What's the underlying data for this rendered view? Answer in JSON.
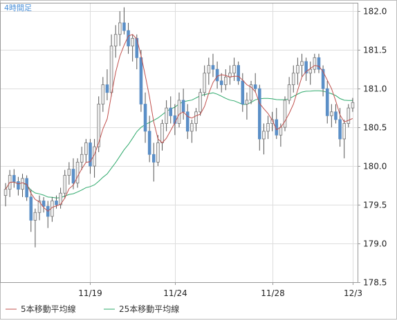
{
  "chart_data": {
    "type": "candlestick",
    "title": "4時間足",
    "ylim": [
      178.5,
      182.1
    ],
    "y_ticks": [
      "182.0",
      "181.5",
      "181.0",
      "180.5",
      "180.0",
      "179.5",
      "179.0",
      "178.5"
    ],
    "y_tick_values": [
      182.0,
      181.5,
      181.0,
      180.5,
      180.0,
      179.5,
      179.0,
      178.5
    ],
    "x_ticks": [
      {
        "label": "11/19",
        "index": 20
      },
      {
        "label": "11/24",
        "index": 40
      },
      {
        "label": "11/28",
        "index": 63
      },
      {
        "label": "12/3",
        "index": 82
      }
    ],
    "grid": true,
    "colors": {
      "up": "#f0f0f0",
      "down": "#5b8fc7",
      "wick": "#555555",
      "ma5": "#c0504d",
      "ma25": "#2ca86a",
      "title": "#4a90d9",
      "grid": "#dddddd",
      "axis": "#999999"
    },
    "candles": [
      [
        179.62,
        179.78,
        179.48,
        179.7
      ],
      [
        179.7,
        179.95,
        179.6,
        179.88
      ],
      [
        179.88,
        179.96,
        179.72,
        179.8
      ],
      [
        179.8,
        179.86,
        179.62,
        179.7
      ],
      [
        179.7,
        179.9,
        179.6,
        179.84
      ],
      [
        179.84,
        179.88,
        179.55,
        179.6
      ],
      [
        179.6,
        179.7,
        179.15,
        179.3
      ],
      [
        179.3,
        179.45,
        178.95,
        179.4
      ],
      [
        179.4,
        179.62,
        179.3,
        179.55
      ],
      [
        179.55,
        179.6,
        179.4,
        179.48
      ],
      [
        179.48,
        179.55,
        179.2,
        179.35
      ],
      [
        179.35,
        179.6,
        179.28,
        179.55
      ],
      [
        179.55,
        179.62,
        179.45,
        179.5
      ],
      [
        179.5,
        179.72,
        179.45,
        179.65
      ],
      [
        179.65,
        179.95,
        179.58,
        179.88
      ],
      [
        179.88,
        180.05,
        179.76,
        179.96
      ],
      [
        179.96,
        180.1,
        179.7,
        179.78
      ],
      [
        179.78,
        180.1,
        179.72,
        180.05
      ],
      [
        180.05,
        180.25,
        179.95,
        180.15
      ],
      [
        180.15,
        180.35,
        180.05,
        180.3
      ],
      [
        180.3,
        180.35,
        179.9,
        180.0
      ],
      [
        180.0,
        180.35,
        179.85,
        180.25
      ],
      [
        180.25,
        180.9,
        180.18,
        180.8
      ],
      [
        180.8,
        181.15,
        180.7,
        181.05
      ],
      [
        181.05,
        181.25,
        180.85,
        180.95
      ],
      [
        180.95,
        181.7,
        180.9,
        181.55
      ],
      [
        181.55,
        181.82,
        181.4,
        181.7
      ],
      [
        181.7,
        182.0,
        181.55,
        181.85
      ],
      [
        181.85,
        182.05,
        181.7,
        181.75
      ],
      [
        181.75,
        181.85,
        181.45,
        181.55
      ],
      [
        181.55,
        181.7,
        181.35,
        181.65
      ],
      [
        181.65,
        181.7,
        181.25,
        181.4
      ],
      [
        181.4,
        181.5,
        180.7,
        180.8
      ],
      [
        180.8,
        180.95,
        180.3,
        180.45
      ],
      [
        180.45,
        180.65,
        180.05,
        180.15
      ],
      [
        180.15,
        180.3,
        179.8,
        180.05
      ],
      [
        180.05,
        180.4,
        180.0,
        180.3
      ],
      [
        180.3,
        180.6,
        180.2,
        180.55
      ],
      [
        180.55,
        180.85,
        180.45,
        180.75
      ],
      [
        180.75,
        180.9,
        180.55,
        180.65
      ],
      [
        180.65,
        180.8,
        180.4,
        180.55
      ],
      [
        180.55,
        180.95,
        180.5,
        180.85
      ],
      [
        180.85,
        181.0,
        180.6,
        180.7
      ],
      [
        180.7,
        180.8,
        180.35,
        180.45
      ],
      [
        180.45,
        180.6,
        180.3,
        180.55
      ],
      [
        180.55,
        180.75,
        180.45,
        180.7
      ],
      [
        180.7,
        181.0,
        180.65,
        180.95
      ],
      [
        180.95,
        181.3,
        180.9,
        181.2
      ],
      [
        181.2,
        181.4,
        181.05,
        181.3
      ],
      [
        181.3,
        181.45,
        181.15,
        181.25
      ],
      [
        181.25,
        181.35,
        181.0,
        181.1
      ],
      [
        181.1,
        181.2,
        180.95,
        181.05
      ],
      [
        181.05,
        181.25,
        180.98,
        181.15
      ],
      [
        181.15,
        181.3,
        181.05,
        181.2
      ],
      [
        181.2,
        181.4,
        181.1,
        181.3
      ],
      [
        181.3,
        181.35,
        181.05,
        181.1
      ],
      [
        181.1,
        181.2,
        180.7,
        180.8
      ],
      [
        180.8,
        180.95,
        180.6,
        180.85
      ],
      [
        180.85,
        181.1,
        180.8,
        181.05
      ],
      [
        181.05,
        181.2,
        180.95,
        181.0
      ],
      [
        181.0,
        181.05,
        180.2,
        180.35
      ],
      [
        180.35,
        180.55,
        180.15,
        180.45
      ],
      [
        180.45,
        180.65,
        180.35,
        180.55
      ],
      [
        180.55,
        180.7,
        180.45,
        180.6
      ],
      [
        180.6,
        180.75,
        180.35,
        180.4
      ],
      [
        180.4,
        180.55,
        180.25,
        180.5
      ],
      [
        180.5,
        180.9,
        180.45,
        180.85
      ],
      [
        180.85,
        181.15,
        180.8,
        181.05
      ],
      [
        181.05,
        181.3,
        180.95,
        181.2
      ],
      [
        181.2,
        181.4,
        181.05,
        181.3
      ],
      [
        181.3,
        181.45,
        181.15,
        181.35
      ],
      [
        181.35,
        181.4,
        181.1,
        181.2
      ],
      [
        181.2,
        181.35,
        181.05,
        181.25
      ],
      [
        181.25,
        181.45,
        181.2,
        181.4
      ],
      [
        181.4,
        181.45,
        181.2,
        181.25
      ],
      [
        181.25,
        181.3,
        180.9,
        181.0
      ],
      [
        181.0,
        181.1,
        180.55,
        180.65
      ],
      [
        180.65,
        180.8,
        180.5,
        180.7
      ],
      [
        180.7,
        180.8,
        180.55,
        180.6
      ],
      [
        180.6,
        180.75,
        180.25,
        180.35
      ],
      [
        180.35,
        180.6,
        180.1,
        180.55
      ],
      [
        180.55,
        180.8,
        180.5,
        180.75
      ],
      [
        180.75,
        180.88,
        180.7,
        180.82
      ]
    ],
    "series": [
      {
        "name": "5本移動平均線",
        "type": "line",
        "period": 5,
        "color": "#c0504d"
      },
      {
        "name": "25本移動平均線",
        "type": "line",
        "period": 25,
        "color": "#2ca86a"
      }
    ],
    "legend_position": "bottom-left"
  }
}
